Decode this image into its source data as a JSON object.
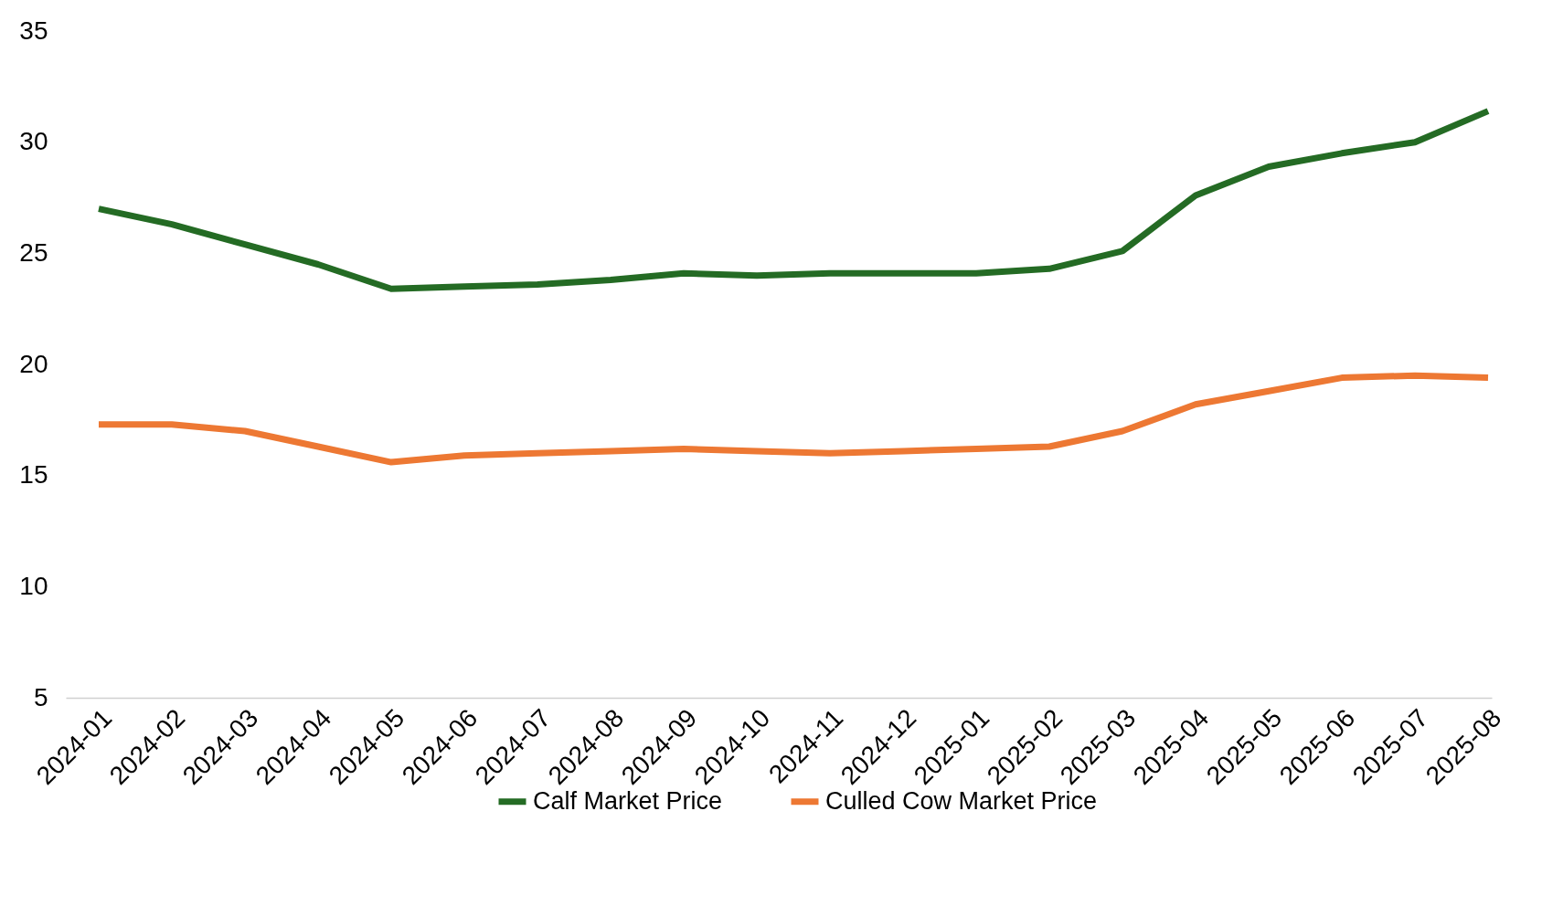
{
  "chart_data": {
    "type": "line",
    "categories": [
      "2024-01",
      "2024-02",
      "2024-03",
      "2024-04",
      "2024-05",
      "2024-06",
      "2024-07",
      "2024-08",
      "2024-09",
      "2024-10",
      "2024-11",
      "2024-12",
      "2025-01",
      "2025-02",
      "2025-03",
      "2025-04",
      "2025-05",
      "2025-06",
      "2025-07",
      "2025-08"
    ],
    "series": [
      {
        "name": "Calf Market Price",
        "color": "#246b24",
        "values": [
          27.0,
          26.3,
          25.4,
          24.5,
          23.4,
          23.5,
          23.6,
          23.8,
          24.1,
          24.0,
          24.1,
          24.1,
          24.1,
          24.3,
          25.1,
          27.6,
          28.9,
          29.5,
          30.0,
          31.4
        ]
      },
      {
        "name": "Culled Cow Market Price",
        "color": "#ed7833",
        "values": [
          17.3,
          17.3,
          17.0,
          16.3,
          15.6,
          15.9,
          16.0,
          16.1,
          16.2,
          16.1,
          16.0,
          16.1,
          16.2,
          16.3,
          17.0,
          18.2,
          18.8,
          19.4,
          19.5,
          19.4
        ]
      }
    ],
    "ylim": [
      5,
      35
    ],
    "yticks": [
      5,
      10,
      15,
      20,
      25,
      30,
      35
    ],
    "grid": false,
    "legend": "bottom",
    "marker": "none",
    "line_style": "solid"
  }
}
